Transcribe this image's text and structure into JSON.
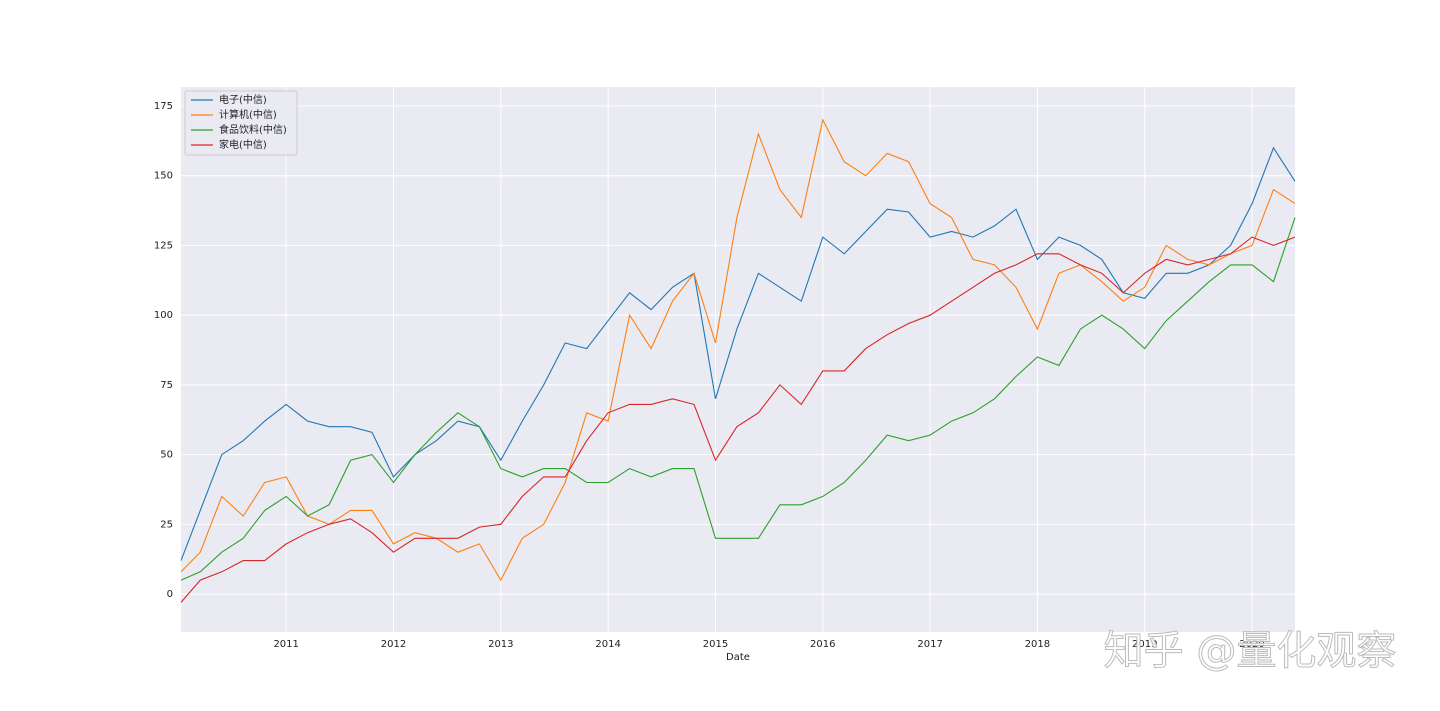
{
  "chart_data": {
    "type": "line",
    "xlabel": "Date",
    "annotation": "知乎 @量化观察",
    "x": [
      2010.02,
      2010.2,
      2010.4,
      2010.6,
      2010.8,
      2011.0,
      2011.2,
      2011.4,
      2011.6,
      2011.8,
      2012.0,
      2012.2,
      2012.4,
      2012.6,
      2012.8,
      2013.0,
      2013.2,
      2013.4,
      2013.6,
      2013.8,
      2014.0,
      2014.2,
      2014.4,
      2014.6,
      2014.8,
      2015.0,
      2015.2,
      2015.4,
      2015.6,
      2015.8,
      2016.0,
      2016.2,
      2016.4,
      2016.6,
      2016.8,
      2017.0,
      2017.2,
      2017.4,
      2017.6,
      2017.8,
      2018.0,
      2018.2,
      2018.4,
      2018.6,
      2018.8,
      2019.0,
      2019.2,
      2019.4,
      2019.6,
      2019.8,
      2020.0,
      2020.2,
      2020.4
    ],
    "series": [
      {
        "name": "电子(中信)",
        "color": "#1f77b4",
        "values": [
          12,
          30,
          50,
          55,
          62,
          68,
          62,
          60,
          60,
          58,
          42,
          50,
          55,
          62,
          60,
          48,
          62,
          75,
          90,
          88,
          98,
          108,
          102,
          110,
          115,
          70,
          95,
          115,
          110,
          105,
          128,
          122,
          130,
          138,
          137,
          128,
          130,
          128,
          132,
          138,
          120,
          128,
          125,
          120,
          108,
          106,
          115,
          115,
          118,
          125,
          140,
          160,
          148
        ]
      },
      {
        "name": "计算机(中信)",
        "color": "#ff7f0e",
        "values": [
          8,
          15,
          35,
          28,
          40,
          42,
          28,
          25,
          30,
          30,
          18,
          22,
          20,
          15,
          18,
          5,
          20,
          25,
          40,
          65,
          62,
          100,
          88,
          105,
          115,
          90,
          135,
          165,
          145,
          135,
          170,
          155,
          150,
          158,
          155,
          140,
          135,
          120,
          118,
          110,
          95,
          115,
          118,
          112,
          105,
          110,
          125,
          120,
          118,
          122,
          125,
          145,
          140
        ]
      },
      {
        "name": "食品饮料(中信)",
        "color": "#2ca02c",
        "values": [
          5,
          8,
          15,
          20,
          30,
          35,
          28,
          32,
          48,
          50,
          40,
          50,
          58,
          65,
          60,
          45,
          42,
          45,
          45,
          40,
          40,
          45,
          42,
          45,
          45,
          20,
          20,
          20,
          32,
          32,
          35,
          40,
          48,
          57,
          55,
          57,
          62,
          65,
          70,
          78,
          85,
          82,
          95,
          100,
          95,
          88,
          98,
          105,
          112,
          118,
          118,
          112,
          135
        ]
      },
      {
        "name": "家电(中信)",
        "color": "#d62728",
        "values": [
          -3,
          5,
          8,
          12,
          12,
          18,
          22,
          25,
          27,
          22,
          15,
          20,
          20,
          20,
          24,
          25,
          35,
          42,
          42,
          55,
          65,
          68,
          68,
          70,
          68,
          48,
          60,
          65,
          75,
          68,
          80,
          80,
          88,
          93,
          97,
          100,
          105,
          110,
          115,
          118,
          122,
          122,
          118,
          115,
          108,
          115,
          120,
          118,
          120,
          122,
          128,
          125,
          128
        ]
      }
    ],
    "xlim": [
      2010.02,
      2020.4
    ],
    "xticks": [
      2011,
      2012,
      2013,
      2014,
      2015,
      2016,
      2017,
      2018,
      2019,
      2020
    ],
    "ylim": [
      -13.6,
      181.8
    ],
    "yticks": [
      0,
      25,
      50,
      75,
      100,
      125,
      150,
      175
    ],
    "grid": true,
    "background": "#eaeaf2",
    "legend": "upper-left"
  }
}
